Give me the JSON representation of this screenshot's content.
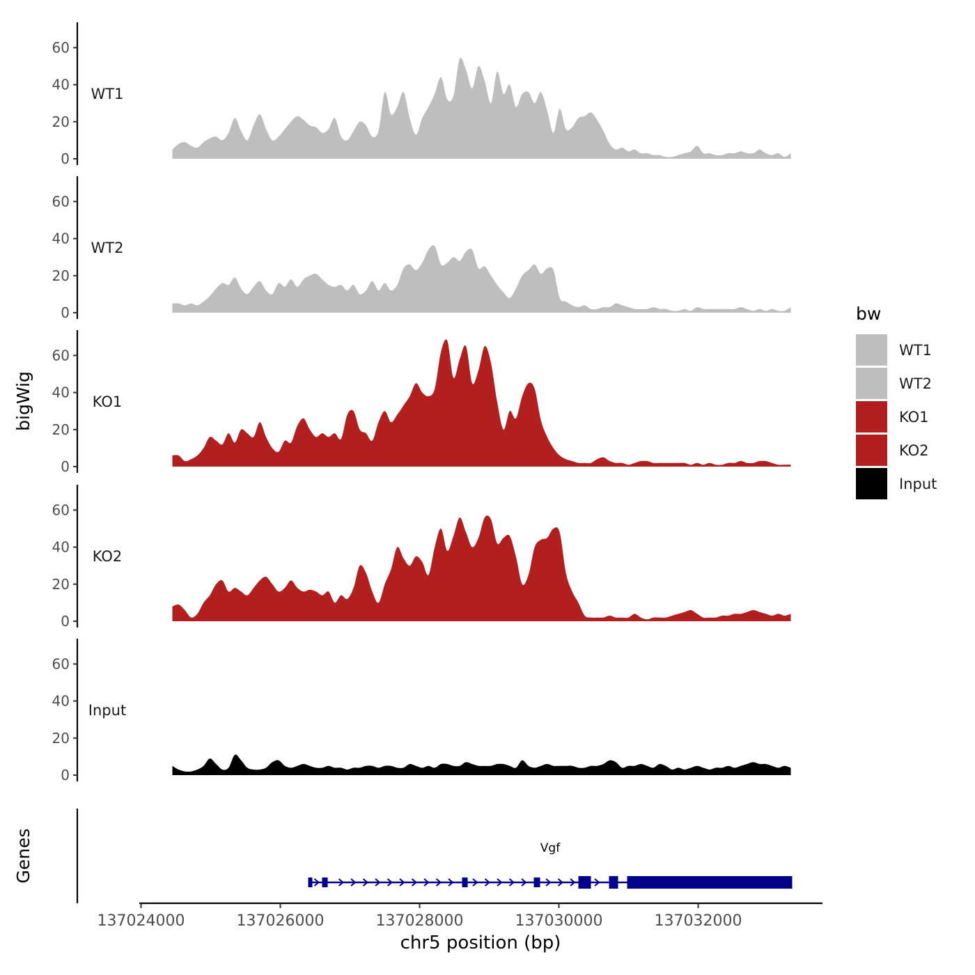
{
  "chart_data": {
    "type": "area",
    "ylabel": "bigWig",
    "xlabel": "chr5 position (bp)",
    "genes_label": "Genes",
    "y_range": [
      0,
      74
    ],
    "y_ticks": [
      0,
      20,
      40,
      60
    ],
    "y_tick_labels": [
      "0",
      "20",
      "40",
      "60"
    ],
    "x_range": [
      137024000,
      137033800
    ],
    "x_ticks": [
      137024000,
      137026000,
      137028000,
      137030000,
      137032000
    ],
    "x_tick_labels": [
      "137024000",
      "137026000",
      "137028000",
      "137030000",
      "137032000"
    ],
    "legend": {
      "title": "bw",
      "position": "right",
      "entries": [
        {
          "label": "WT1",
          "color": "#bebebe"
        },
        {
          "label": "WT2",
          "color": "#bebebe"
        },
        {
          "label": "KO1",
          "color": "#b21f1f"
        },
        {
          "label": "KO2",
          "color": "#b21f1f"
        },
        {
          "label": "Input",
          "color": "#000000"
        }
      ]
    },
    "tracks": [
      {
        "name": "WT1",
        "color": "#bebebe",
        "x_start": 137024450,
        "x_end": 137033330,
        "values": [
          5,
          8,
          9,
          7,
          6,
          9,
          11,
          12,
          10,
          14,
          22,
          15,
          10,
          18,
          24,
          16,
          10,
          12,
          16,
          20,
          23,
          21,
          18,
          17,
          14,
          16,
          22,
          12,
          10,
          15,
          20,
          18,
          12,
          15,
          36,
          24,
          28,
          36,
          22,
          13,
          22,
          28,
          35,
          44,
          32,
          34,
          54,
          48,
          38,
          50,
          42,
          30,
          47,
          35,
          40,
          28,
          35,
          36,
          30,
          36,
          26,
          14,
          27,
          16,
          17,
          22,
          23,
          25,
          21,
          15,
          8,
          5,
          6,
          4,
          5,
          3,
          3,
          2,
          2,
          1,
          1,
          2,
          3,
          4,
          7,
          3,
          3,
          2,
          2,
          3,
          3,
          4,
          3,
          3,
          5,
          3,
          2,
          3,
          1,
          3
        ]
      },
      {
        "name": "WT2",
        "color": "#bebebe",
        "x_start": 137024450,
        "x_end": 137033330,
        "values": [
          5,
          5,
          4,
          5,
          4,
          6,
          9,
          13,
          16,
          15,
          19,
          13,
          10,
          14,
          17,
          12,
          10,
          16,
          14,
          18,
          14,
          18,
          20,
          21,
          18,
          15,
          14,
          15,
          12,
          15,
          10,
          12,
          17,
          12,
          16,
          12,
          15,
          24,
          26,
          23,
          27,
          34,
          36,
          26,
          27,
          30,
          28,
          33,
          34,
          24,
          25,
          20,
          15,
          11,
          8,
          13,
          20,
          23,
          26,
          21,
          24,
          23,
          8,
          6,
          4,
          3,
          4,
          2,
          2,
          3,
          3,
          5,
          4,
          3,
          2,
          2,
          2,
          3,
          2,
          2,
          1,
          1,
          2,
          1,
          3,
          2,
          2,
          2,
          2,
          2,
          2,
          3,
          2,
          1,
          2,
          1,
          2,
          1,
          1,
          3
        ]
      },
      {
        "name": "KO1",
        "color": "#b21f1f",
        "x_start": 137024450,
        "x_end": 137033330,
        "values": [
          6,
          6,
          3,
          4,
          6,
          10,
          16,
          14,
          12,
          18,
          13,
          20,
          18,
          16,
          24,
          16,
          10,
          8,
          14,
          13,
          22,
          26,
          20,
          16,
          18,
          16,
          18,
          15,
          28,
          30,
          20,
          18,
          14,
          24,
          30,
          24,
          28,
          33,
          38,
          45,
          40,
          38,
          42,
          62,
          68,
          48,
          58,
          65,
          45,
          52,
          65,
          56,
          35,
          20,
          30,
          26,
          38,
          45,
          42,
          25,
          16,
          10,
          6,
          4,
          3,
          2,
          2,
          2,
          4,
          5,
          3,
          2,
          2,
          1,
          2,
          3,
          3,
          2,
          2,
          2,
          2,
          2,
          2,
          1,
          2,
          1,
          2,
          1,
          1,
          2,
          2,
          3,
          2,
          2,
          3,
          3,
          2,
          1,
          1,
          1
        ]
      },
      {
        "name": "KO2",
        "color": "#b21f1f",
        "x_start": 137024450,
        "x_end": 137033330,
        "values": [
          8,
          9,
          6,
          2,
          4,
          10,
          14,
          20,
          22,
          16,
          18,
          16,
          14,
          18,
          22,
          24,
          20,
          16,
          18,
          22,
          18,
          16,
          17,
          16,
          14,
          16,
          10,
          14,
          12,
          18,
          30,
          26,
          16,
          10,
          20,
          28,
          40,
          34,
          30,
          35,
          32,
          25,
          40,
          50,
          38,
          46,
          56,
          48,
          40,
          45,
          56,
          55,
          42,
          45,
          46,
          35,
          20,
          25,
          40,
          44,
          45,
          50,
          48,
          26,
          16,
          10,
          3,
          2,
          2,
          2,
          3,
          2,
          2,
          2,
          4,
          2,
          1,
          2,
          2,
          2,
          3,
          4,
          5,
          6,
          4,
          2,
          2,
          2,
          3,
          3,
          4,
          4,
          5,
          6,
          5,
          4,
          3,
          4,
          3,
          4
        ]
      },
      {
        "name": "Input",
        "color": "#000000",
        "x_start": 137024450,
        "x_end": 137033330,
        "values": [
          5,
          3,
          2,
          2,
          3,
          5,
          9,
          6,
          3,
          4,
          11,
          8,
          4,
          3,
          3,
          4,
          7,
          8,
          5,
          4,
          5,
          6,
          5,
          4,
          4,
          5,
          4,
          4,
          3,
          4,
          4,
          5,
          5,
          4,
          5,
          5,
          4,
          4,
          6,
          5,
          4,
          5,
          4,
          6,
          6,
          5,
          5,
          7,
          6,
          5,
          5,
          5,
          6,
          6,
          5,
          4,
          8,
          5,
          4,
          5,
          6,
          5,
          5,
          5,
          5,
          4,
          4,
          5,
          5,
          6,
          8,
          7,
          4,
          5,
          5,
          6,
          5,
          4,
          6,
          5,
          3,
          4,
          3,
          4,
          5,
          4,
          3,
          4,
          4,
          5,
          4,
          5,
          6,
          7,
          6,
          6,
          5,
          4,
          5,
          4
        ]
      }
    ],
    "gene": {
      "name": "Vgf",
      "strand": "+",
      "color": "#00008b",
      "start": 137026400,
      "end": 137033350,
      "exons": [
        {
          "start": 137026400,
          "end": 137026460,
          "size": "small"
        },
        {
          "start": 137026600,
          "end": 137026680,
          "size": "small"
        },
        {
          "start": 137028610,
          "end": 137028690,
          "size": "small"
        },
        {
          "start": 137029640,
          "end": 137029730,
          "size": "small"
        },
        {
          "start": 137030280,
          "end": 137030460,
          "size": "large"
        },
        {
          "start": 137030720,
          "end": 137030850,
          "size": "large"
        },
        {
          "start": 137030980,
          "end": 137033350,
          "size": "large"
        }
      ]
    }
  }
}
